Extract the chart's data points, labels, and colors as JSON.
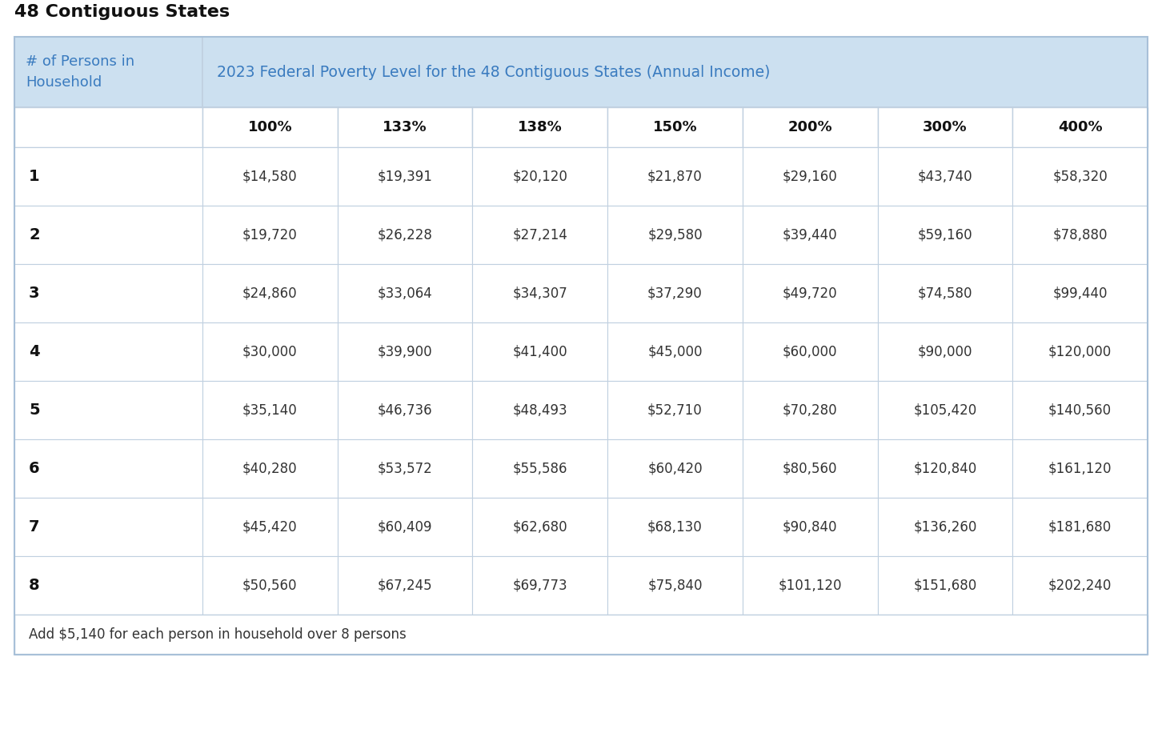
{
  "main_title": "48 Contiguous States",
  "header_col1": "# of Persons in\nHousehold",
  "header_span": "2023 Federal Poverty Level for the 48 Contiguous States (Annual Income)",
  "pct_headers": [
    "100%",
    "133%",
    "138%",
    "150%",
    "200%",
    "300%",
    "400%"
  ],
  "row_labels": [
    "1",
    "2",
    "3",
    "4",
    "5",
    "6",
    "7",
    "8"
  ],
  "table_data": [
    [
      "$14,580",
      "$19,391",
      "$20,120",
      "$21,870",
      "$29,160",
      "$43,740",
      "$58,320"
    ],
    [
      "$19,720",
      "$26,228",
      "$27,214",
      "$29,580",
      "$39,440",
      "$59,160",
      "$78,880"
    ],
    [
      "$24,860",
      "$33,064",
      "$34,307",
      "$37,290",
      "$49,720",
      "$74,580",
      "$99,440"
    ],
    [
      "$30,000",
      "$39,900",
      "$41,400",
      "$45,000",
      "$60,000",
      "$90,000",
      "$120,000"
    ],
    [
      "$35,140",
      "$46,736",
      "$48,493",
      "$52,710",
      "$70,280",
      "$105,420",
      "$140,560"
    ],
    [
      "$40,280",
      "$53,572",
      "$55,586",
      "$60,420",
      "$80,560",
      "$120,840",
      "$161,120"
    ],
    [
      "$45,420",
      "$60,409",
      "$62,680",
      "$68,130",
      "$90,840",
      "$136,260",
      "$181,680"
    ],
    [
      "$50,560",
      "$67,245",
      "$69,773",
      "$75,840",
      "$101,120",
      "$151,680",
      "$202,240"
    ]
  ],
  "footer_note": "Add $5,140 for each person in household over 8 persons",
  "bg_color": "#ffffff",
  "header_bg_color": "#cce0f0",
  "header_text_color": "#3a7bbf",
  "border_color": "#c0d0e0",
  "text_color": "#333333",
  "bold_color": "#111111",
  "title_color": "#111111",
  "title_fontsize": 16,
  "header_fontsize": 13,
  "cell_fontsize": 12,
  "footer_fontsize": 12
}
